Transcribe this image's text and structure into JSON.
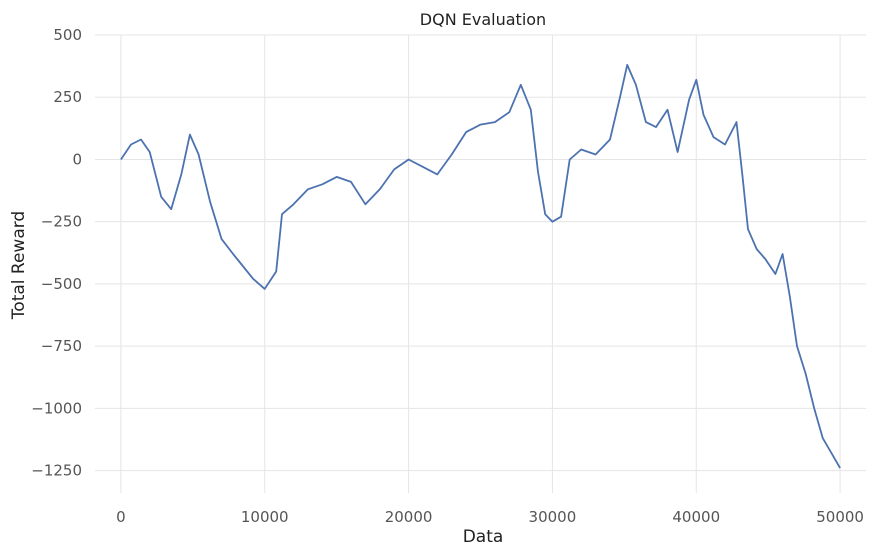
{
  "chart_data": {
    "type": "line",
    "title": "DQN Evaluation",
    "xlabel": "Data",
    "ylabel": "Total Reward",
    "xlim": [
      -1800,
      51800
    ],
    "ylim": [
      -1340,
      500
    ],
    "xticks": [
      0,
      10000,
      20000,
      30000,
      40000,
      50000
    ],
    "yticks": [
      500,
      250,
      0,
      -250,
      -500,
      -750,
      -1000,
      -1250
    ],
    "xtick_labels": [
      "0",
      "10000",
      "20000",
      "30000",
      "40000",
      "50000"
    ],
    "ytick_labels": [
      "500",
      "250",
      "0",
      "−250",
      "−500",
      "−750",
      "−1000",
      "−1250"
    ],
    "grid": true,
    "legend": false,
    "colors": {
      "line": "#4c72b0",
      "grid": "#e5e5e5"
    },
    "series": [
      {
        "x": [
          0,
          700,
          1400,
          2000,
          2800,
          3500,
          4200,
          4800,
          5400,
          6200,
          7000,
          7800,
          8500,
          9200,
          10000,
          10800,
          11200,
          12000,
          13000,
          14000,
          15000,
          16000,
          17000,
          18000,
          19000,
          20000,
          21000,
          22000,
          23000,
          24000,
          25000,
          26000,
          27000,
          27800,
          28500,
          29000,
          29500,
          30000,
          30600,
          31200,
          32000,
          33000,
          34000,
          34700,
          35200,
          35800,
          36500,
          37200,
          38000,
          38700,
          39500,
          40000,
          40500,
          41200,
          42000,
          42800,
          43200,
          43600,
          44200,
          44800,
          45500,
          46000,
          46500,
          47000,
          47600,
          48200,
          48800,
          49400,
          50000
        ],
        "y": [
          0,
          60,
          80,
          30,
          -150,
          -200,
          -60,
          100,
          20,
          -170,
          -320,
          -380,
          -430,
          -480,
          -520,
          -450,
          -220,
          -180,
          -120,
          -100,
          -70,
          -90,
          -180,
          -120,
          -40,
          0,
          -30,
          -60,
          20,
          110,
          140,
          150,
          190,
          300,
          200,
          -50,
          -220,
          -250,
          -230,
          0,
          40,
          20,
          80,
          250,
          380,
          300,
          150,
          130,
          200,
          30,
          240,
          320,
          180,
          90,
          60,
          150,
          -60,
          -280,
          -360,
          -400,
          -460,
          -380,
          -550,
          -750,
          -860,
          -1000,
          -1120,
          -1180,
          -1240
        ]
      }
    ]
  }
}
